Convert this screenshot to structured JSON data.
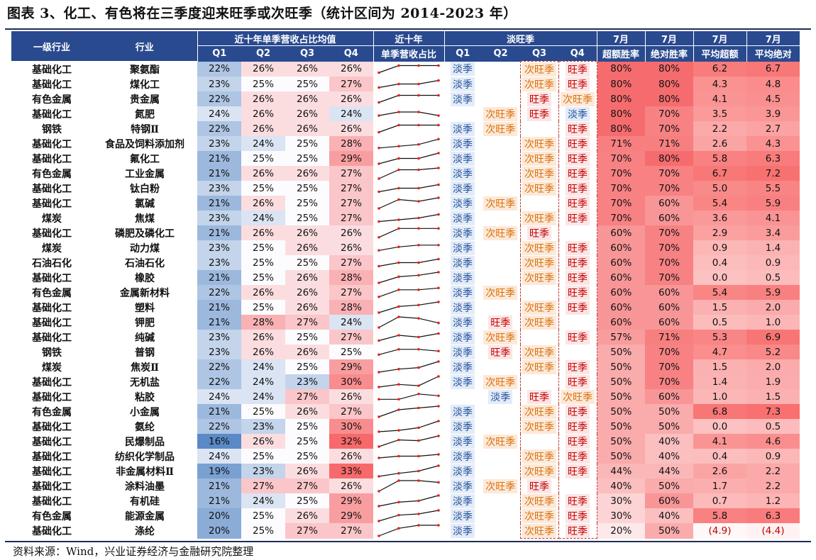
{
  "title": "图表 3、化工、有色将在三季度迎来旺季或次旺季（统计区间为 2014-2023 年）",
  "source": "资料来源：Wind，兴业证券经济与金融研究院整理",
  "header": {
    "col_level1": "一级行业",
    "col_industry": "行业",
    "group_avg": "近十年单季营收占比均值",
    "group_trend_line1": "近十年",
    "group_trend_line2": "单季营收占比",
    "group_season": "淡旺季",
    "quarters": [
      "Q1",
      "Q2",
      "Q3",
      "Q4"
    ],
    "july_label": "7月",
    "metrics": [
      "超额胜率",
      "绝对胜率",
      "平均超额",
      "平均绝对"
    ]
  },
  "legend_colors": {
    "low": "#2f6db5",
    "high": "#f8696b",
    "header": "#2a4a8f"
  },
  "rows": [
    {
      "l1": "基础化工",
      "ind": "聚氨酯",
      "q": [
        22,
        26,
        26,
        26
      ],
      "s": [
        "淡季",
        "",
        "次旺季",
        "旺季"
      ],
      "m": [
        "80%",
        "80%",
        "6.2",
        "6.7"
      ]
    },
    {
      "l1": "基础化工",
      "ind": "煤化工",
      "q": [
        23,
        25,
        25,
        27
      ],
      "s": [
        "淡季",
        "",
        "次旺季",
        "旺季"
      ],
      "m": [
        "80%",
        "80%",
        "4.3",
        "4.8"
      ]
    },
    {
      "l1": "有色金属",
      "ind": "贵金属",
      "q": [
        22,
        26,
        26,
        26
      ],
      "s": [
        "淡季",
        "",
        "旺季",
        "次旺季"
      ],
      "m": [
        "80%",
        "80%",
        "4.1",
        "4.5"
      ]
    },
    {
      "l1": "基础化工",
      "ind": "氮肥",
      "q": [
        24,
        26,
        26,
        24
      ],
      "s": [
        "",
        "次旺季",
        "旺季",
        "淡季"
      ],
      "m": [
        "80%",
        "70%",
        "3.5",
        "3.9"
      ]
    },
    {
      "l1": "钢铁",
      "ind": "特钢Ⅱ",
      "q": [
        22,
        26,
        26,
        26
      ],
      "s": [
        "淡季",
        "次旺季",
        "",
        "旺季"
      ],
      "m": [
        "80%",
        "70%",
        "2.2",
        "2.7"
      ]
    },
    {
      "l1": "基础化工",
      "ind": "食品及饲料添加剂",
      "q": [
        23,
        24,
        25,
        28
      ],
      "s": [
        "淡季",
        "",
        "次旺季",
        "旺季"
      ],
      "m": [
        "71%",
        "71%",
        "2.6",
        "4.3"
      ]
    },
    {
      "l1": "基础化工",
      "ind": "氟化工",
      "q": [
        21,
        25,
        25,
        29
      ],
      "s": [
        "淡季",
        "",
        "次旺季",
        "旺季"
      ],
      "m": [
        "70%",
        "80%",
        "5.8",
        "6.3"
      ]
    },
    {
      "l1": "有色金属",
      "ind": "工业金属",
      "q": [
        21,
        26,
        26,
        27
      ],
      "s": [
        "淡季",
        "",
        "次旺季",
        "旺季"
      ],
      "m": [
        "70%",
        "70%",
        "6.7",
        "7.2"
      ]
    },
    {
      "l1": "基础化工",
      "ind": "钛白粉",
      "q": [
        23,
        25,
        25,
        27
      ],
      "s": [
        "淡季",
        "",
        "次旺季",
        "旺季"
      ],
      "m": [
        "70%",
        "70%",
        "5.0",
        "5.5"
      ]
    },
    {
      "l1": "基础化工",
      "ind": "氯碱",
      "q": [
        21,
        26,
        25,
        27
      ],
      "s": [
        "淡季",
        "次旺季",
        "",
        "旺季"
      ],
      "m": [
        "70%",
        "60%",
        "5.4",
        "5.9"
      ]
    },
    {
      "l1": "煤炭",
      "ind": "焦煤",
      "q": [
        23,
        24,
        25,
        27
      ],
      "s": [
        "淡季",
        "",
        "次旺季",
        "旺季"
      ],
      "m": [
        "70%",
        "60%",
        "3.6",
        "4.1"
      ]
    },
    {
      "l1": "基础化工",
      "ind": "磷肥及磷化工",
      "q": [
        21,
        26,
        26,
        26
      ],
      "s": [
        "淡季",
        "次旺季",
        "旺季",
        ""
      ],
      "m": [
        "60%",
        "70%",
        "2.9",
        "3.4"
      ]
    },
    {
      "l1": "煤炭",
      "ind": "动力煤",
      "q": [
        23,
        25,
        26,
        26
      ],
      "s": [
        "淡季",
        "",
        "次旺季",
        "旺季"
      ],
      "m": [
        "60%",
        "70%",
        "0.9",
        "1.4"
      ]
    },
    {
      "l1": "石油石化",
      "ind": "石油石化",
      "q": [
        23,
        25,
        25,
        27
      ],
      "s": [
        "淡季",
        "",
        "次旺季",
        "旺季"
      ],
      "m": [
        "60%",
        "70%",
        "0.4",
        "0.9"
      ]
    },
    {
      "l1": "基础化工",
      "ind": "橡胶",
      "q": [
        21,
        25,
        26,
        28
      ],
      "s": [
        "淡季",
        "",
        "次旺季",
        "旺季"
      ],
      "m": [
        "60%",
        "70%",
        "0.0",
        "0.5"
      ]
    },
    {
      "l1": "有色金属",
      "ind": "金属新材料",
      "q": [
        22,
        26,
        26,
        27
      ],
      "s": [
        "淡季",
        "次旺季",
        "",
        "旺季"
      ],
      "m": [
        "60%",
        "60%",
        "5.4",
        "5.9"
      ]
    },
    {
      "l1": "基础化工",
      "ind": "塑料",
      "q": [
        21,
        25,
        26,
        28
      ],
      "s": [
        "淡季",
        "",
        "次旺季",
        "旺季"
      ],
      "m": [
        "60%",
        "60%",
        "1.5",
        "2.0"
      ]
    },
    {
      "l1": "基础化工",
      "ind": "钾肥",
      "q": [
        21,
        28,
        27,
        24
      ],
      "s": [
        "淡季",
        "旺季",
        "次旺季",
        ""
      ],
      "m": [
        "60%",
        "60%",
        "0.5",
        "1.0"
      ]
    },
    {
      "l1": "基础化工",
      "ind": "纯碱",
      "q": [
        23,
        26,
        25,
        27
      ],
      "s": [
        "淡季",
        "次旺季",
        "",
        "旺季"
      ],
      "m": [
        "57%",
        "71%",
        "5.3",
        "6.9"
      ]
    },
    {
      "l1": "钢铁",
      "ind": "普钢",
      "q": [
        23,
        26,
        26,
        25
      ],
      "s": [
        "淡季",
        "旺季",
        "次旺季",
        ""
      ],
      "m": [
        "50%",
        "70%",
        "4.7",
        "5.2"
      ]
    },
    {
      "l1": "煤炭",
      "ind": "焦炭Ⅱ",
      "q": [
        22,
        24,
        25,
        29
      ],
      "s": [
        "淡季",
        "",
        "次旺季",
        "旺季"
      ],
      "m": [
        "50%",
        "70%",
        "1.5",
        "2.0"
      ]
    },
    {
      "l1": "基础化工",
      "ind": "无机盐",
      "q": [
        22,
        24,
        23,
        30
      ],
      "s": [
        "淡季",
        "次旺季",
        "",
        "旺季"
      ],
      "m": [
        "50%",
        "70%",
        "1.4",
        "1.9"
      ]
    },
    {
      "l1": "基础化工",
      "ind": "粘胶",
      "q": [
        24,
        24,
        27,
        26
      ],
      "s": [
        "",
        "淡季",
        "旺季",
        "次旺季"
      ],
      "m": [
        "50%",
        "60%",
        "1.0",
        "1.5"
      ]
    },
    {
      "l1": "有色金属",
      "ind": "小金属",
      "q": [
        21,
        25,
        26,
        27
      ],
      "s": [
        "淡季",
        "",
        "次旺季",
        "旺季"
      ],
      "m": [
        "50%",
        "50%",
        "6.8",
        "7.3"
      ]
    },
    {
      "l1": "基础化工",
      "ind": "氨纶",
      "q": [
        22,
        23,
        25,
        30
      ],
      "s": [
        "淡季",
        "",
        "次旺季",
        "旺季"
      ],
      "m": [
        "50%",
        "50%",
        "0.0",
        "0.5"
      ]
    },
    {
      "l1": "基础化工",
      "ind": "民爆制品",
      "q": [
        16,
        26,
        25,
        32
      ],
      "s": [
        "淡季",
        "次旺季",
        "",
        "旺季"
      ],
      "m": [
        "50%",
        "40%",
        "4.1",
        "4.6"
      ]
    },
    {
      "l1": "基础化工",
      "ind": "纺织化学制品",
      "q": [
        24,
        25,
        25,
        26
      ],
      "s": [
        "淡季",
        "",
        "次旺季",
        "旺季"
      ],
      "m": [
        "50%",
        "40%",
        "0.4",
        "0.9"
      ]
    },
    {
      "l1": "基础化工",
      "ind": "非金属材料Ⅱ",
      "q": [
        19,
        23,
        26,
        33
      ],
      "s": [
        "淡季",
        "",
        "次旺季",
        "旺季"
      ],
      "m": [
        "44%",
        "44%",
        "2.6",
        "2.2"
      ]
    },
    {
      "l1": "基础化工",
      "ind": "涂料油墨",
      "q": [
        21,
        27,
        27,
        26
      ],
      "s": [
        "淡季",
        "次旺季",
        "旺季",
        ""
      ],
      "m": [
        "40%",
        "50%",
        "1.7",
        "2.2"
      ]
    },
    {
      "l1": "基础化工",
      "ind": "有机硅",
      "q": [
        21,
        24,
        25,
        29
      ],
      "s": [
        "淡季",
        "",
        "次旺季",
        "旺季"
      ],
      "m": [
        "30%",
        "60%",
        "0.7",
        "1.2"
      ]
    },
    {
      "l1": "有色金属",
      "ind": "能源金属",
      "q": [
        20,
        25,
        26,
        29
      ],
      "s": [
        "淡季",
        "",
        "次旺季",
        "旺季"
      ],
      "m": [
        "30%",
        "40%",
        "5.8",
        "6.3"
      ]
    },
    {
      "l1": "基础化工",
      "ind": "涤纶",
      "q": [
        20,
        25,
        27,
        27
      ],
      "s": [
        "淡季",
        "",
        "次旺季",
        "旺季"
      ],
      "m": [
        "20%",
        "50%",
        "(4.9)",
        "(4.4)"
      ]
    }
  ]
}
